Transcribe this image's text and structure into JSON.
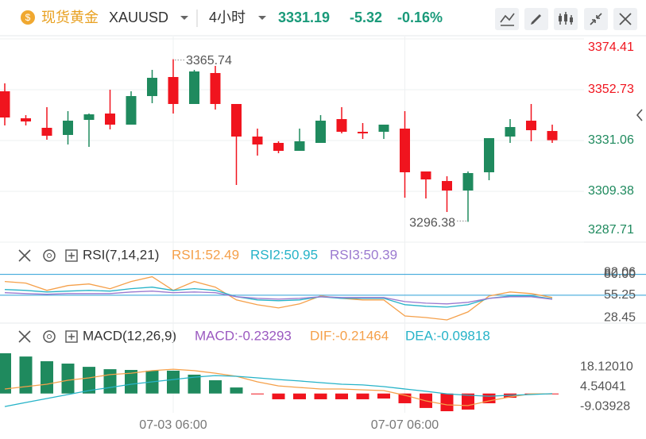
{
  "header": {
    "name": "现货黄金",
    "symbol": "XAUUSD",
    "interval": "4小时",
    "price": "3331.19",
    "change": "-5.32",
    "change_pct": "-0.16%"
  },
  "chart_data": [
    {
      "type": "candlestick",
      "up_color": "#1f8a5e",
      "down_color": "#f0141e",
      "categories": [
        null,
        null,
        null,
        null,
        null,
        null,
        null,
        null,
        "07-03 06:00",
        null,
        null,
        null,
        null,
        null,
        null,
        null,
        null,
        null,
        null,
        "07-07 06:00",
        null,
        null,
        null,
        null,
        null,
        null,
        null
      ],
      "open": [
        3352.06,
        3340.54,
        3336.48,
        3333.43,
        3339.86,
        3342.57,
        3337.83,
        3350.02,
        3358.15,
        3346.64,
        3359.85,
        3346.64,
        3332.75,
        3330.04,
        3326.65,
        3330.04,
        3340.2,
        3334.78,
        3334.78,
        3336.14,
        3317.85,
        3313.78,
        3309.72,
        3317.51,
        3332.75,
        3339.52,
        3335.12
      ],
      "high": [
        3355.44,
        3341.89,
        3345.28,
        3343.59,
        3342.57,
        3352.73,
        3352.06,
        3361.2,
        3365.74,
        3361.2,
        3362.89,
        3346.64,
        3336.14,
        3330.72,
        3336.14,
        3341.89,
        3345.28,
        3338.51,
        3337.83,
        3343.59,
        3317.85,
        3315.81,
        3317.85,
        3332.07,
        3340.2,
        3346.64,
        3337.83
      ],
      "low": [
        3337.49,
        3337.49,
        3331.4,
        3329.36,
        3328.35,
        3335.8,
        3337.83,
        3346.98,
        3342.57,
        3346.64,
        3344.27,
        3312.09,
        3324.62,
        3325.64,
        3326.65,
        3330.04,
        3334.1,
        3331.73,
        3331.73,
        3306.67,
        3306.33,
        3300.57,
        3296.38,
        3314.12,
        3330.04,
        3330.72,
        3330.04
      ],
      "close": [
        3340.88,
        3339.19,
        3333.09,
        3339.52,
        3342.23,
        3337.83,
        3350.02,
        3357.81,
        3346.64,
        3360.52,
        3346.64,
        3332.75,
        3329.36,
        3326.65,
        3330.72,
        3339.52,
        3334.78,
        3334.1,
        3337.83,
        3317.51,
        3314.46,
        3309.72,
        3317.17,
        3332.07,
        3336.81,
        3335.46,
        3331.19
      ],
      "ylim": [
        3287.71,
        3374.41
      ],
      "yticks": [
        3374.41,
        3352.73,
        3331.06,
        3309.38,
        3287.71
      ],
      "grid": true
    },
    {
      "type": "line",
      "title": "RSI(7,14,21)",
      "ylim": [
        24,
        90
      ],
      "yticks": [
        {
          "value": 80,
          "label": "80.00"
        },
        82.06,
        55.25,
        28.45
      ],
      "reference_lines": [
        80,
        55.25
      ],
      "reference_color": "#2a9fd6",
      "series": [
        {
          "name": "RSI1:52.49",
          "color": "#f5a04a",
          "values": [
            71.5,
            69.6,
            61.0,
            66.7,
            68.6,
            62.9,
            71.5,
            77.2,
            61.0,
            71.5,
            64.8,
            49.6,
            43.9,
            40.1,
            44.9,
            54.4,
            51.5,
            49.6,
            49.6,
            30.6,
            28.7,
            25.9,
            35.4,
            54.4,
            59.1,
            57.2,
            52.49
          ]
        },
        {
          "name": "RSI2:50.95",
          "color": "#26b3c8",
          "values": [
            62.0,
            61.0,
            59.1,
            60.1,
            61.0,
            60.1,
            63.0,
            64.8,
            61.0,
            63.0,
            61.0,
            53.4,
            49.6,
            48.7,
            49.6,
            53.4,
            51.5,
            51.5,
            51.5,
            44.0,
            42.1,
            41.1,
            44.0,
            51.5,
            54.4,
            54.4,
            50.95
          ]
        },
        {
          "name": "RSI3:50.39",
          "color": "#9b7ad0",
          "values": [
            58.2,
            57.2,
            56.3,
            57.2,
            57.2,
            57.2,
            59.1,
            60.1,
            58.2,
            59.1,
            58.2,
            53.4,
            51.5,
            50.6,
            51.5,
            53.4,
            52.5,
            52.5,
            52.5,
            47.7,
            45.8,
            44.9,
            46.8,
            51.5,
            53.4,
            53.4,
            50.39
          ]
        }
      ]
    },
    {
      "type": "macd",
      "title": "MACD(12,26,9)",
      "ylim": [
        -12,
        30
      ],
      "yticks": [
        {
          "value": 18.1201,
          "label": "18.12010"
        },
        4.54041,
        -9.03928
      ],
      "up_color": "#1f8a5e",
      "down_color": "#f0141e",
      "histogram": {
        "name": "MACD:-0.23293",
        "color": "#9b59c0",
        "values": [
          27.3,
          25.1,
          21.9,
          20.3,
          18.1,
          16.5,
          16.0,
          15.5,
          15.5,
          12.8,
          9.0,
          4.1,
          -0.4,
          -3.9,
          -3.9,
          -3.9,
          -3.9,
          -3.9,
          -3.4,
          -6.6,
          -9.8,
          -12.0,
          -10.9,
          -6.6,
          -2.9,
          -0.7,
          -0.23293
        ]
      },
      "series": [
        {
          "name": "DIF:-0.21464",
          "color": "#f5a04a",
          "values": [
            3.1,
            4.7,
            6.3,
            9.0,
            10.6,
            12.8,
            13.8,
            15.5,
            16.5,
            15.5,
            13.8,
            11.7,
            7.9,
            5.2,
            4.1,
            3.1,
            3.1,
            2.5,
            2.0,
            -1.2,
            -5.0,
            -7.7,
            -8.2,
            -5.0,
            -2.3,
            -0.2,
            -0.21464
          ]
        },
        {
          "name": "DEA:-0.09818",
          "color": "#26b3c8",
          "values": [
            -8.8,
            -6.1,
            -3.4,
            -0.7,
            2.0,
            4.1,
            6.3,
            7.9,
            9.5,
            11.1,
            12.2,
            11.7,
            10.6,
            9.5,
            8.5,
            7.4,
            6.3,
            5.8,
            4.7,
            3.1,
            1.5,
            -0.2,
            -1.2,
            -1.8,
            -1.2,
            -0.7,
            -0.09818
          ]
        }
      ]
    }
  ]
}
